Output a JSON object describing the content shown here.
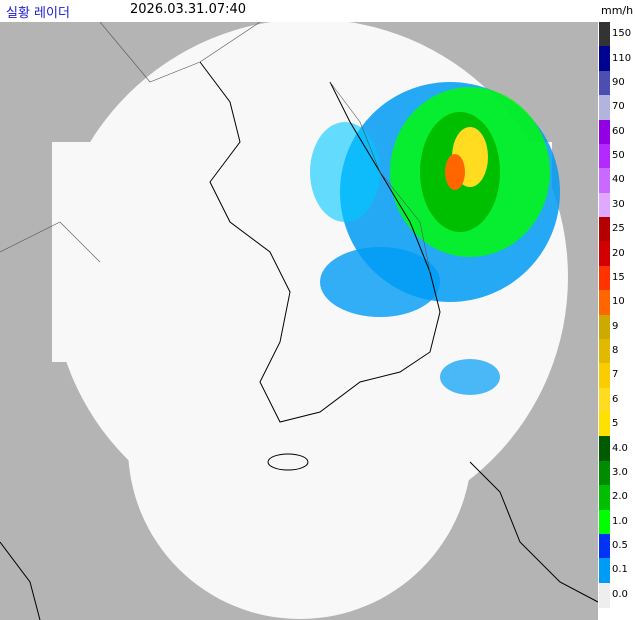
{
  "header": {
    "title": "실황 레이더",
    "time": "2026.03.31.07:40"
  },
  "legend": {
    "unit": "mm/h",
    "items": [
      {
        "label": "150",
        "color": "#333333"
      },
      {
        "label": "110",
        "color": "#000390"
      },
      {
        "label": "90",
        "color": "#4c4eb1"
      },
      {
        "label": "70",
        "color": "#b3b4de"
      },
      {
        "label": "60",
        "color": "#9300e4"
      },
      {
        "label": "50",
        "color": "#b329ff"
      },
      {
        "label": "40",
        "color": "#c969ff"
      },
      {
        "label": "30",
        "color": "#e0a9ff"
      },
      {
        "label": "25",
        "color": "#b40000"
      },
      {
        "label": "20",
        "color": "#d20000"
      },
      {
        "label": "15",
        "color": "#ff3200"
      },
      {
        "label": "10",
        "color": "#ff6600"
      },
      {
        "label": "9",
        "color": "#ccaa00"
      },
      {
        "label": "8",
        "color": "#e0b900"
      },
      {
        "label": "7",
        "color": "#f9cd00"
      },
      {
        "label": "6",
        "color": "#ffdc1f"
      },
      {
        "label": "5",
        "color": "#ffe100"
      },
      {
        "label": "4.0",
        "color": "#005a00"
      },
      {
        "label": "3.0",
        "color": "#008c00"
      },
      {
        "label": "2.0",
        "color": "#00be00"
      },
      {
        "label": "1.0",
        "color": "#00ff00"
      },
      {
        "label": "0.5",
        "color": "#0033f5"
      },
      {
        "label": "0.1",
        "color": "#009bf5"
      },
      {
        "label": "0.0",
        "color": "#eeeeee"
      }
    ]
  }
}
